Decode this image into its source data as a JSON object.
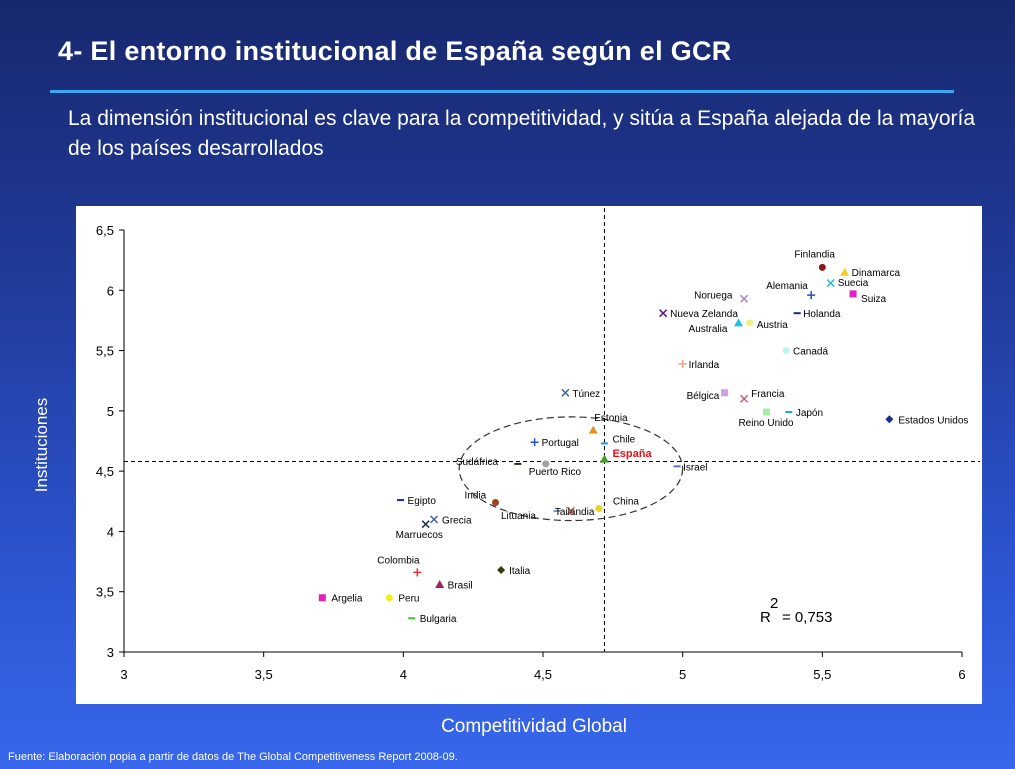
{
  "header": {
    "title": "4- El entorno institucional de España según el GCR",
    "subtitle": "La dimensión institucional es clave para la competitividad, y sitúa a España alejada de la mayoría de los países desarrollados"
  },
  "footer": {
    "source": "Fuente: Elaboración popia a partir de datos de The Global Competitiveness Report 2008-09."
  },
  "colors": {
    "background": "#203a98",
    "rule": "#3aa8f0",
    "highlight": "#e8121c"
  },
  "chart_data": {
    "type": "scatter",
    "xlabel": "Competitividad Global",
    "ylabel": "Instituciones",
    "xlim": [
      3,
      6
    ],
    "ylim": [
      3,
      6.5
    ],
    "x_ticks": [
      "3",
      "3,5",
      "4",
      "4,5",
      "5",
      "5,5",
      "6"
    ],
    "y_ticks": [
      "3",
      "3,5",
      "4",
      "4,5",
      "5",
      "5,5",
      "6",
      "6,5"
    ],
    "reference_lines": {
      "x": 4.72,
      "y": 4.58
    },
    "annotation": {
      "r_squared_label": "R",
      "r_squared_exp": "2",
      "r_squared_value": "= 0,753",
      "r_squared": 0.753
    },
    "highlight_ellipse": {
      "cx": 4.6,
      "cy": 4.52,
      "rx": 0.4,
      "ry": 0.43
    },
    "points": [
      {
        "name": "Finlandia",
        "x": 5.5,
        "y": 6.19,
        "marker": "circle",
        "color": "#8b1a1a"
      },
      {
        "name": "Dinamarca",
        "x": 5.58,
        "y": 6.15,
        "marker": "triangle",
        "color": "#f0d020"
      },
      {
        "name": "Suecia",
        "x": 5.53,
        "y": 6.06,
        "marker": "x",
        "color": "#20c0e0"
      },
      {
        "name": "Alemania",
        "x": 5.46,
        "y": 5.96,
        "marker": "plus",
        "color": "#2050c0"
      },
      {
        "name": "Suiza",
        "x": 5.61,
        "y": 5.97,
        "marker": "square",
        "color": "#e020c0"
      },
      {
        "name": "Noruega",
        "x": 5.22,
        "y": 5.93,
        "marker": "x",
        "color": "#a080d0"
      },
      {
        "name": "Nueva Zelanda",
        "x": 4.93,
        "y": 5.81,
        "marker": "x",
        "color": "#601890"
      },
      {
        "name": "Holanda",
        "x": 5.41,
        "y": 5.81,
        "marker": "dash",
        "color": "#1a2a80"
      },
      {
        "name": "Australia",
        "x": 5.2,
        "y": 5.73,
        "marker": "triangle",
        "color": "#20c0e0"
      },
      {
        "name": "Austria",
        "x": 5.24,
        "y": 5.73,
        "marker": "circle",
        "color": "#f0f080"
      },
      {
        "name": "Canadá",
        "x": 5.37,
        "y": 5.5,
        "marker": "circle",
        "color": "#c0f0f0"
      },
      {
        "name": "Irlanda",
        "x": 5.0,
        "y": 5.39,
        "marker": "plus",
        "color": "#f0a080"
      },
      {
        "name": "Túnez",
        "x": 4.58,
        "y": 5.15,
        "marker": "x",
        "color": "#4060a0"
      },
      {
        "name": "Bélgica",
        "x": 5.15,
        "y": 5.15,
        "marker": "square",
        "color": "#d0a0e0"
      },
      {
        "name": "Francia",
        "x": 5.22,
        "y": 5.1,
        "marker": "x",
        "color": "#d06080"
      },
      {
        "name": "Reino Unido",
        "x": 5.3,
        "y": 4.99,
        "marker": "square",
        "color": "#a0f0a0"
      },
      {
        "name": "Japón",
        "x": 5.38,
        "y": 4.99,
        "marker": "dash",
        "color": "#20a0e0"
      },
      {
        "name": "Estados Unidos",
        "x": 5.74,
        "y": 4.93,
        "marker": "diamond",
        "color": "#1a2a90"
      },
      {
        "name": "Estonia",
        "x": 4.68,
        "y": 4.84,
        "marker": "triangle",
        "color": "#e09020"
      },
      {
        "name": "Portugal",
        "x": 4.47,
        "y": 4.74,
        "marker": "plus",
        "color": "#2050c0"
      },
      {
        "name": "Chile",
        "x": 4.72,
        "y": 4.73,
        "marker": "dash",
        "color": "#20a0e0"
      },
      {
        "name": "España",
        "x": 4.72,
        "y": 4.6,
        "marker": "triangle",
        "color": "#40a020",
        "highlight": true
      },
      {
        "name": "Sudáfrica",
        "x": 4.41,
        "y": 4.56,
        "marker": "dash",
        "color": "#203020"
      },
      {
        "name": "Puerto Rico",
        "x": 4.51,
        "y": 4.56,
        "marker": "circle",
        "color": "#a0a0a0"
      },
      {
        "name": "Israel",
        "x": 4.98,
        "y": 4.54,
        "marker": "dash",
        "color": "#6070c0"
      },
      {
        "name": "Egipto",
        "x": 3.99,
        "y": 4.26,
        "marker": "dash",
        "color": "#1a2a90"
      },
      {
        "name": "India",
        "x": 4.33,
        "y": 4.24,
        "marker": "circle",
        "color": "#a04020"
      },
      {
        "name": "China",
        "x": 4.7,
        "y": 4.19,
        "marker": "circle",
        "color": "#f0d020"
      },
      {
        "name": "Lituania",
        "x": 4.55,
        "y": 4.17,
        "marker": "dash",
        "color": "#8090c0"
      },
      {
        "name": "Tailandia",
        "x": 4.6,
        "y": 4.17,
        "marker": "x",
        "color": "#d06040"
      },
      {
        "name": "Grecia",
        "x": 4.11,
        "y": 4.1,
        "marker": "x",
        "color": "#4060a0"
      },
      {
        "name": "Marruecos",
        "x": 4.08,
        "y": 4.06,
        "marker": "x",
        "color": "#203050"
      },
      {
        "name": "Colombia",
        "x": 4.05,
        "y": 3.66,
        "marker": "plus",
        "color": "#e03030"
      },
      {
        "name": "Italia",
        "x": 4.35,
        "y": 3.68,
        "marker": "diamond",
        "color": "#304010"
      },
      {
        "name": "Brasil",
        "x": 4.13,
        "y": 3.56,
        "marker": "triangle",
        "color": "#a02060"
      },
      {
        "name": "Argelia",
        "x": 3.71,
        "y": 3.45,
        "marker": "square",
        "color": "#e020c0"
      },
      {
        "name": "Peru",
        "x": 3.95,
        "y": 3.45,
        "marker": "circle",
        "color": "#f0f020"
      },
      {
        "name": "Bulgaria",
        "x": 4.03,
        "y": 3.28,
        "marker": "dash",
        "color": "#40c040"
      }
    ]
  }
}
